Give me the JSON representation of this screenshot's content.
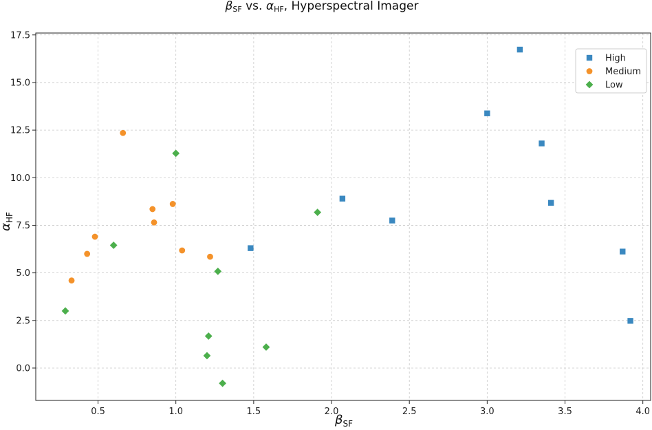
{
  "chart_data": {
    "type": "scatter",
    "title": {
      "prefix_sym": "β",
      "prefix_sub": "SF",
      "mid": " vs. ",
      "mid_sym": "α",
      "mid_sub": "HF",
      "suffix": ", Hyperspectral Imager"
    },
    "xlabel": {
      "sym": "β",
      "sub": "SF"
    },
    "ylabel": {
      "sym": "α",
      "sub": "HF"
    },
    "xlim": [
      0.1,
      4.05
    ],
    "ylim": [
      -1.7,
      17.6
    ],
    "xticks": [
      "0.5",
      "1.0",
      "1.5",
      "2.0",
      "2.5",
      "3.0",
      "3.5",
      "4.0"
    ],
    "yticks": [
      "0.0",
      "2.5",
      "5.0",
      "7.5",
      "10.0",
      "12.5",
      "15.0",
      "17.5"
    ],
    "grid": true,
    "legend_position": "top-right",
    "series": [
      {
        "name": "High",
        "color": "#3a88c0",
        "marker": "square",
        "points": [
          {
            "x": 1.48,
            "y": 6.3
          },
          {
            "x": 2.07,
            "y": 8.9
          },
          {
            "x": 2.39,
            "y": 7.75
          },
          {
            "x": 3.0,
            "y": 13.38
          },
          {
            "x": 3.21,
            "y": 16.73
          },
          {
            "x": 3.35,
            "y": 11.8
          },
          {
            "x": 3.41,
            "y": 8.68
          },
          {
            "x": 3.87,
            "y": 6.12
          },
          {
            "x": 3.92,
            "y": 2.48
          }
        ]
      },
      {
        "name": "Medium",
        "color": "#f4922a",
        "marker": "circle",
        "points": [
          {
            "x": 0.33,
            "y": 4.6
          },
          {
            "x": 0.43,
            "y": 6.0
          },
          {
            "x": 0.48,
            "y": 6.9
          },
          {
            "x": 0.66,
            "y": 12.35
          },
          {
            "x": 0.85,
            "y": 8.35
          },
          {
            "x": 0.86,
            "y": 7.65
          },
          {
            "x": 0.98,
            "y": 8.62
          },
          {
            "x": 1.04,
            "y": 6.18
          },
          {
            "x": 1.22,
            "y": 5.85
          }
        ]
      },
      {
        "name": "Low",
        "color": "#4caf4c",
        "marker": "diamond",
        "points": [
          {
            "x": 0.29,
            "y": 3.0
          },
          {
            "x": 0.6,
            "y": 6.45
          },
          {
            "x": 1.0,
            "y": 11.28
          },
          {
            "x": 1.27,
            "y": 5.08
          },
          {
            "x": 1.21,
            "y": 1.68
          },
          {
            "x": 1.2,
            "y": 0.65
          },
          {
            "x": 1.3,
            "y": -0.8
          },
          {
            "x": 1.58,
            "y": 1.1
          },
          {
            "x": 1.91,
            "y": 8.18
          }
        ]
      }
    ]
  }
}
